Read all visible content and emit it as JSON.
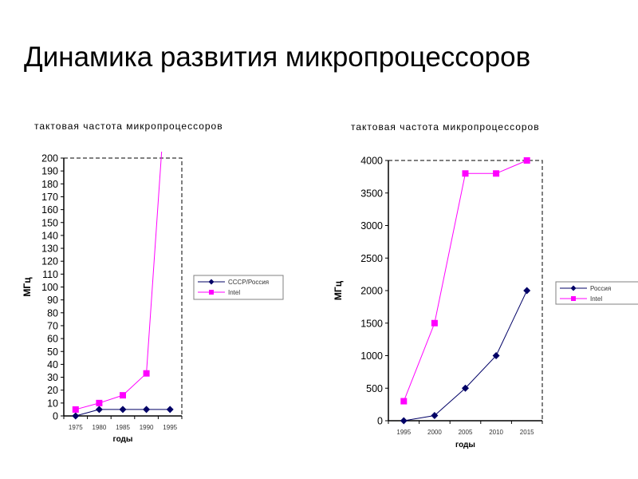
{
  "slide": {
    "title": "Динамика развития микропроцессоров"
  },
  "colors": {
    "series1": "#000066",
    "series2": "#ff00ff",
    "axis": "#000000",
    "legend_border": "#808080"
  },
  "chart_data": [
    {
      "type": "line",
      "title": "тактовая частота микропроцессоров",
      "xlabel": "годы",
      "ylabel": "МГц",
      "categories": [
        "1975",
        "1980",
        "1985",
        "1990",
        "1995"
      ],
      "ylim": [
        0,
        200
      ],
      "yticks": [
        "0",
        "10",
        "20",
        "30",
        "40",
        "50",
        "60",
        "70",
        "80",
        "90",
        "100",
        "110",
        "120",
        "130",
        "140",
        "150",
        "160",
        "170",
        "180",
        "190",
        "200"
      ],
      "legend_position": "right",
      "grid": false,
      "series": [
        {
          "name": "СССР/Россия",
          "marker": "diamond",
          "values": [
            0,
            5,
            5,
            5,
            5
          ]
        },
        {
          "name": "Intel",
          "marker": "square",
          "values": [
            5,
            10,
            16,
            33,
            300
          ]
        }
      ]
    },
    {
      "type": "line",
      "title": "тактовая частота микропроцессоров",
      "xlabel": "годы",
      "ylabel": "МГц",
      "categories": [
        "1995",
        "2000",
        "2005",
        "2010",
        "2015"
      ],
      "ylim": [
        0,
        4000
      ],
      "yticks": [
        "0",
        "500",
        "1000",
        "1500",
        "2000",
        "2500",
        "3000",
        "3500",
        "4000"
      ],
      "legend_position": "right",
      "grid": false,
      "series": [
        {
          "name": "Россия",
          "marker": "diamond",
          "values": [
            0,
            80,
            500,
            1000,
            2000
          ]
        },
        {
          "name": "Intel",
          "marker": "square",
          "values": [
            300,
            1500,
            3800,
            3800,
            4000
          ]
        }
      ]
    }
  ]
}
